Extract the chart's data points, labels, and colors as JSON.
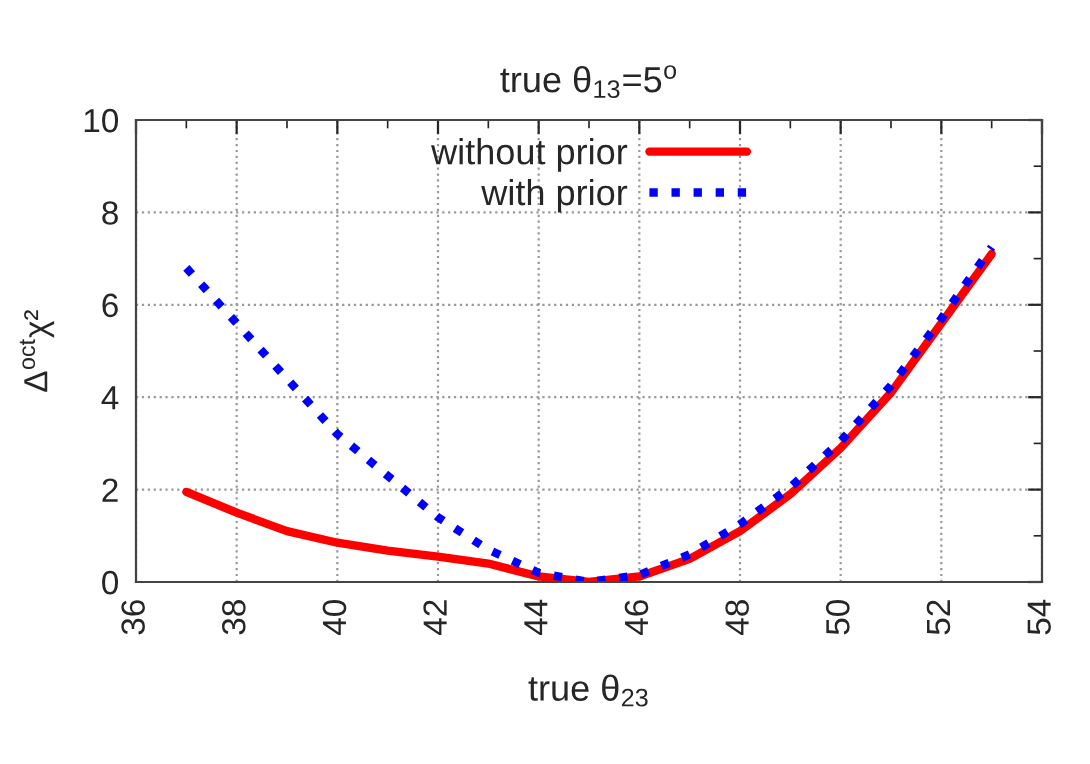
{
  "chart_data": {
    "type": "line",
    "title": "true θ$_{13}$=5$^{o}$",
    "xlabel": "true θ$_{23}$",
    "ylabel": "Δ$^{oct}$χ²",
    "x": [
      37,
      38,
      39,
      40,
      41,
      42,
      43,
      44,
      45,
      46,
      47,
      48,
      49,
      50,
      51,
      52,
      53
    ],
    "series": [
      {
        "name": "without prior",
        "color": "#ff0000",
        "line_style": "solid",
        "values": [
          1.95,
          1.5,
          1.1,
          0.85,
          0.68,
          0.55,
          0.4,
          0.12,
          0,
          0.12,
          0.5,
          1.1,
          1.9,
          2.9,
          4.1,
          5.6,
          7.1
        ]
      },
      {
        "name": "with prior",
        "color": "#0000ff",
        "line_style": "dotted",
        "values": [
          6.8,
          5.6,
          4.4,
          3.2,
          2.3,
          1.4,
          0.7,
          0.2,
          0,
          0.15,
          0.6,
          1.25,
          2.05,
          3.05,
          4.25,
          5.7,
          7.25
        ]
      }
    ],
    "xlim": [
      36,
      54
    ],
    "xticks": [
      36,
      38,
      40,
      42,
      44,
      46,
      48,
      50,
      52,
      54
    ],
    "ylim": [
      0,
      10
    ],
    "yticks": [
      0,
      2,
      4,
      6,
      8,
      10
    ],
    "grid": true,
    "legend": "top"
  }
}
